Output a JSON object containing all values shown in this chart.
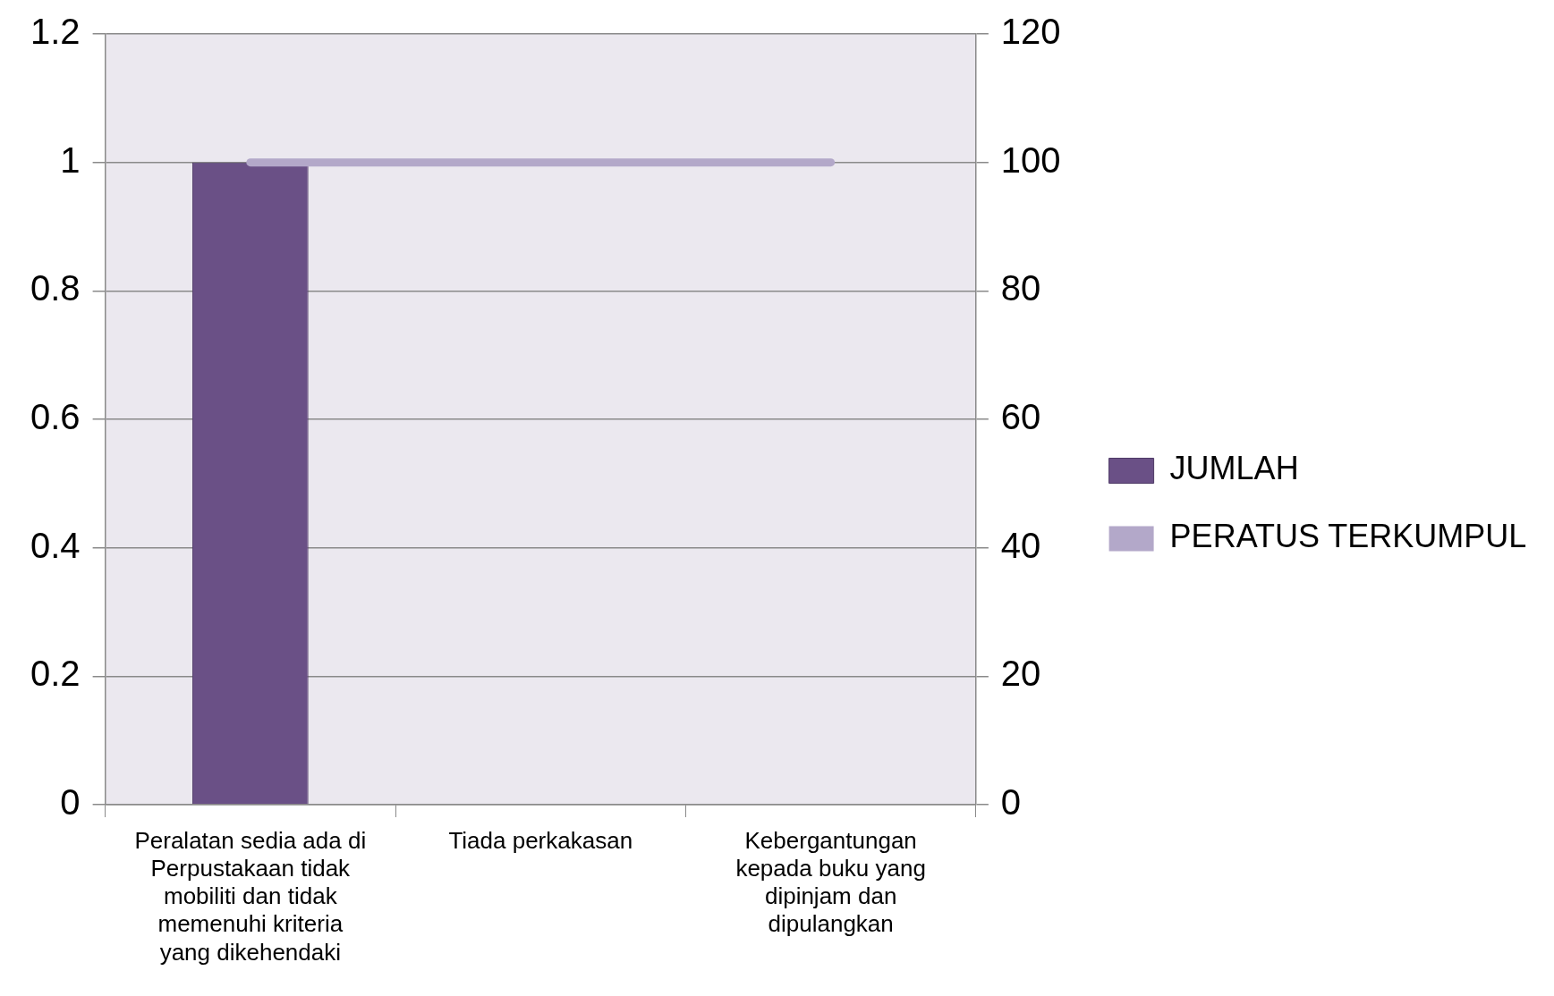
{
  "chart_data": {
    "type": "bar",
    "categories": [
      "Peralatan sedia ada di Perpustakaan tidak mobiliti dan tidak memenuhi kriteria yang dikehendaki",
      "Tiada perkakasan",
      "Kebergantungan kepada buku yang dipinjam dan dipulangkan"
    ],
    "series": [
      {
        "name": "JUMLAH",
        "color": "#6a5086",
        "values": [
          1,
          0,
          0
        ]
      },
      {
        "name": "PERATUS TERKUMPUL",
        "type": "line",
        "axis": "y2",
        "color": "#b3a8c9",
        "values": [
          100,
          100,
          100
        ]
      }
    ],
    "ylim": [
      0,
      1.2
    ],
    "yticks": [
      0,
      0.2,
      0.4,
      0.6,
      0.8,
      1,
      1.2
    ],
    "y2lim": [
      0,
      120
    ],
    "y2ticks": [
      0,
      20,
      40,
      60,
      80,
      100,
      120
    ],
    "grid": "y",
    "legend": "right",
    "marker": "none"
  }
}
